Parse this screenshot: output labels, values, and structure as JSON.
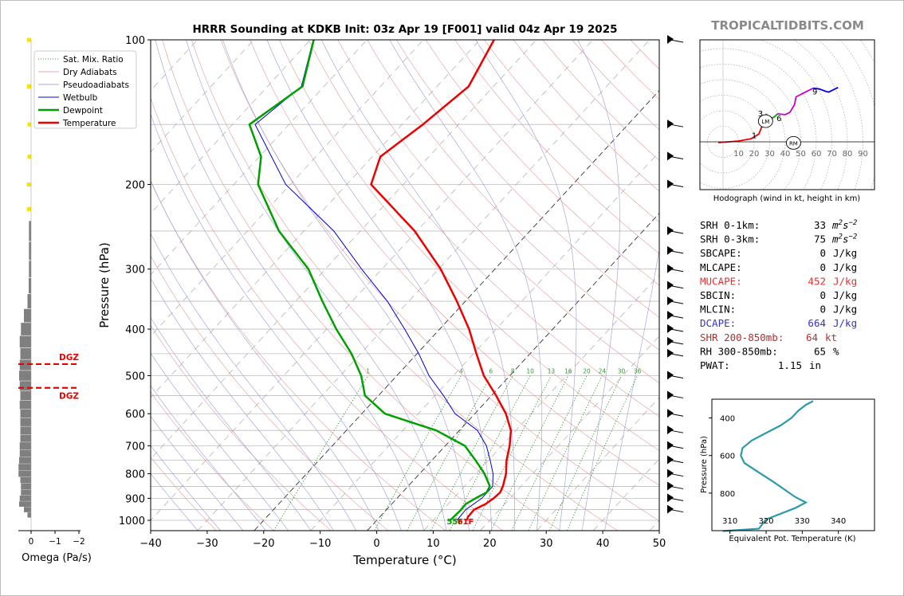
{
  "chart_data": {
    "type": "skew-t sounding",
    "title": "HRRR Sounding at KDKB Init: 03z Apr 19 [F001] valid 04z Apr 19 2025",
    "watermark": "TROPICALTIDBITS.COM",
    "xlabel": "Temperature (°C)",
    "ylabel": "Pressure (hPa)",
    "xlim": [
      -40,
      50
    ],
    "ylim": [
      1050,
      100
    ],
    "y_scale": "log",
    "x_ticks": [
      -40,
      -30,
      -20,
      -10,
      0,
      10,
      20,
      30,
      40,
      50
    ],
    "y_ticks": [
      100,
      200,
      300,
      400,
      500,
      600,
      700,
      800,
      900,
      1000
    ],
    "mixing_ratio_labels": [
      "1",
      "4",
      "6",
      "8",
      "10",
      "13",
      "16",
      "20",
      "24",
      "30",
      "36"
    ],
    "legend": {
      "placement": "upper-left",
      "entries": [
        {
          "label": "Sat. Mix. Ratio",
          "color": "#3a9a3a",
          "style": "dotted"
        },
        {
          "label": "Dry Adiabats",
          "color": "#e8a8a8",
          "style": "solid"
        },
        {
          "label": "Pseudoadiabats",
          "color": "#a8a8e0",
          "style": "solid"
        },
        {
          "label": "Wetbulb",
          "color": "#0000dd",
          "style": "solid"
        },
        {
          "label": "Dewpoint",
          "color": "#00a000",
          "style": "solid"
        },
        {
          "label": "Temperature",
          "color": "#ee0000",
          "style": "solid"
        }
      ]
    },
    "temperature": [
      [
        1000,
        16
      ],
      [
        985,
        15.6
      ],
      [
        950,
        15.5
      ],
      [
        925,
        16.6
      ],
      [
        900,
        17.1
      ],
      [
        875,
        17.3
      ],
      [
        850,
        16.8
      ],
      [
        800,
        15.3
      ],
      [
        750,
        13.2
      ],
      [
        700,
        11.4
      ],
      [
        650,
        9.1
      ],
      [
        600,
        5.5
      ],
      [
        550,
        0.8
      ],
      [
        500,
        -4.6
      ],
      [
        450,
        -9.5
      ],
      [
        400,
        -14.8
      ],
      [
        350,
        -21.5
      ],
      [
        300,
        -29.6
      ],
      [
        250,
        -40.4
      ],
      [
        200,
        -55.7
      ],
      [
        175,
        -58.6
      ],
      [
        150,
        -56.3
      ],
      [
        125,
        -54.4
      ],
      [
        100,
        -57.5
      ]
    ],
    "dewpoint": [
      [
        1000,
        13
      ],
      [
        950,
        13.2
      ],
      [
        925,
        13.1
      ],
      [
        900,
        13.9
      ],
      [
        875,
        14.9
      ],
      [
        850,
        14.5
      ],
      [
        800,
        11.5
      ],
      [
        750,
        7.7
      ],
      [
        700,
        3.5
      ],
      [
        650,
        -4.1
      ],
      [
        600,
        -15.9
      ],
      [
        550,
        -22.4
      ],
      [
        500,
        -26.3
      ],
      [
        450,
        -31.6
      ],
      [
        400,
        -38.3
      ],
      [
        350,
        -45.3
      ],
      [
        300,
        -53
      ],
      [
        250,
        -64.4
      ],
      [
        200,
        -75.7
      ],
      [
        175,
        -79.7
      ],
      [
        150,
        -87
      ],
      [
        125,
        -83.8
      ],
      [
        100,
        -89.4
      ]
    ],
    "wetbulb": [
      [
        1000,
        14.2
      ],
      [
        950,
        14
      ],
      [
        900,
        15
      ],
      [
        850,
        15
      ],
      [
        800,
        13
      ],
      [
        750,
        10.3
      ],
      [
        700,
        7.3
      ],
      [
        650,
        3.2
      ],
      [
        600,
        -3.5
      ],
      [
        550,
        -8.5
      ],
      [
        500,
        -14.3
      ],
      [
        450,
        -19.7
      ],
      [
        400,
        -26.2
      ],
      [
        350,
        -33.8
      ],
      [
        300,
        -43.6
      ],
      [
        250,
        -54.7
      ],
      [
        200,
        -70.8
      ],
      [
        150,
        -86
      ],
      [
        125,
        -84
      ],
      [
        100,
        -89.5
      ]
    ],
    "surface_labels": {
      "dewpoint": "55F",
      "temperature": "61F"
    },
    "wind_barb_levels": [
      100,
      150,
      175,
      200,
      250,
      275,
      300,
      325,
      350,
      375,
      400,
      425,
      450,
      500,
      550,
      600,
      650,
      700,
      750,
      800,
      850,
      900,
      950
    ],
    "omega": {
      "xlabel": "Omega (Pa/s)",
      "x_ticks": [
        "0",
        "−1",
        "−2"
      ],
      "dgz_labels": [
        "DGZ",
        "DGZ"
      ],
      "dgz_bounds_hpa": [
        473,
        530
      ],
      "bar_color_upper": "#f5e311",
      "bar_color_lower": "#7f7f7f",
      "values": [
        [
          100,
          0.35
        ],
        [
          125,
          0.35
        ],
        [
          150,
          0.3
        ],
        [
          175,
          0.3
        ],
        [
          200,
          0.35
        ],
        [
          225,
          0.35
        ],
        [
          250,
          0.18
        ],
        [
          275,
          0.18
        ],
        [
          300,
          0.18
        ],
        [
          325,
          0.2
        ],
        [
          350,
          0.3
        ],
        [
          375,
          0.6
        ],
        [
          400,
          0.85
        ],
        [
          425,
          0.95
        ],
        [
          450,
          0.9
        ],
        [
          475,
          0.95
        ],
        [
          500,
          1.0
        ],
        [
          525,
          0.95
        ],
        [
          550,
          0.9
        ],
        [
          575,
          0.95
        ],
        [
          600,
          0.9
        ],
        [
          625,
          0.9
        ],
        [
          650,
          0.9
        ],
        [
          675,
          0.9
        ],
        [
          700,
          0.95
        ],
        [
          725,
          0.95
        ],
        [
          750,
          1.0
        ],
        [
          775,
          1.05
        ],
        [
          800,
          1.05
        ],
        [
          825,
          0.9
        ],
        [
          850,
          0.85
        ],
        [
          875,
          0.85
        ],
        [
          900,
          0.95
        ],
        [
          925,
          1.0
        ],
        [
          950,
          0.6
        ],
        [
          975,
          0.3
        ]
      ]
    },
    "hodograph": {
      "caption": "Hodograph (wind in kt, height in km)",
      "ring_labels": [
        "10",
        "20",
        "30",
        "40",
        "50",
        "60",
        "70",
        "80",
        "90"
      ],
      "height_labels": [
        "1",
        "2",
        "3",
        "6",
        "9"
      ],
      "storm_motion_labels": [
        "LM",
        "RM"
      ],
      "storm_motion_kt": {
        "LM": [
          14,
          21
        ],
        "RM": [
          32,
          7
        ]
      },
      "segments": [
        {
          "color": "#ee0000",
          "points": [
            [
              -3,
              -0.5
            ],
            [
              10,
              0.5
            ],
            [
              18,
              2
            ],
            [
              23,
              5
            ],
            [
              25,
              10
            ],
            [
              26,
              14
            ],
            [
              27,
              16
            ],
            [
              28,
              18
            ]
          ]
        },
        {
          "color": "#00a000",
          "points": [
            [
              28,
              18
            ],
            [
              28,
              15
            ],
            [
              30,
              14.5
            ],
            [
              33,
              16
            ],
            [
              35,
              18
            ]
          ]
        },
        {
          "color": "#cc00cc",
          "points": [
            [
              35,
              18
            ],
            [
              40,
              17.5
            ],
            [
              43,
              19
            ],
            [
              46,
              24
            ],
            [
              47,
              29
            ],
            [
              51,
              31
            ],
            [
              54,
              32.5
            ],
            [
              58,
              34.5
            ]
          ]
        },
        {
          "color": "#0000dd",
          "points": [
            [
              58,
              34.5
            ],
            [
              62,
              34
            ],
            [
              66,
              32.5
            ],
            [
              68,
              32
            ],
            [
              72,
              34
            ],
            [
              74,
              35
            ]
          ]
        }
      ]
    },
    "parameters": [
      {
        "label": "SRH 0-1km:",
        "value": "33",
        "unit": "m2s-2",
        "color": "#000000"
      },
      {
        "label": "SRH 0-3km:",
        "value": "75",
        "unit": "m2s-2",
        "color": "#000000"
      },
      {
        "label": "SBCAPE:",
        "value": "0",
        "unit": "J/kg",
        "color": "#000000"
      },
      {
        "label": "MLCAPE:",
        "value": "0",
        "unit": "J/kg",
        "color": "#000000"
      },
      {
        "label": "MUCAPE:",
        "value": "452",
        "unit": "J/kg",
        "color": "#dd3333"
      },
      {
        "label": "SBCIN:",
        "value": "0",
        "unit": "J/kg",
        "color": "#000000"
      },
      {
        "label": "MLCIN:",
        "value": "0",
        "unit": "J/kg",
        "color": "#000000"
      },
      {
        "label": "DCAPE:",
        "value": "664",
        "unit": "J/kg",
        "color": "#3333cc"
      },
      {
        "label": "SHR 200-850mb:",
        "value": "64",
        "unit": "kt",
        "color": "#b03030"
      },
      {
        "label": "RH 300-850mb:",
        "value": "65",
        "unit": "%",
        "color": "#000000"
      },
      {
        "label": "PWAT:",
        "value": "1.15",
        "unit": "in",
        "color": "#000000"
      }
    ],
    "theta_e": {
      "xlabel": "Equivalent Pot. Temperature (K)",
      "ylabel": "Pressure (hPa)",
      "xlim": [
        305,
        350
      ],
      "ylim": [
        1000,
        300
      ],
      "x_ticks": [
        310,
        320,
        330,
        340
      ],
      "y_ticks": [
        400,
        600,
        800
      ],
      "points": [
        [
          308,
          1002
        ],
        [
          318,
          990
        ],
        [
          320,
          940
        ],
        [
          328,
          880
        ],
        [
          331,
          850
        ],
        [
          328,
          820
        ],
        [
          325,
          780
        ],
        [
          322,
          740
        ],
        [
          318,
          690
        ],
        [
          314,
          640
        ],
        [
          313,
          600
        ],
        [
          313.5,
          560
        ],
        [
          316,
          520
        ],
        [
          320,
          480
        ],
        [
          324,
          440
        ],
        [
          327,
          400
        ],
        [
          329,
          360
        ],
        [
          331,
          330
        ],
        [
          333,
          310
        ]
      ]
    }
  }
}
